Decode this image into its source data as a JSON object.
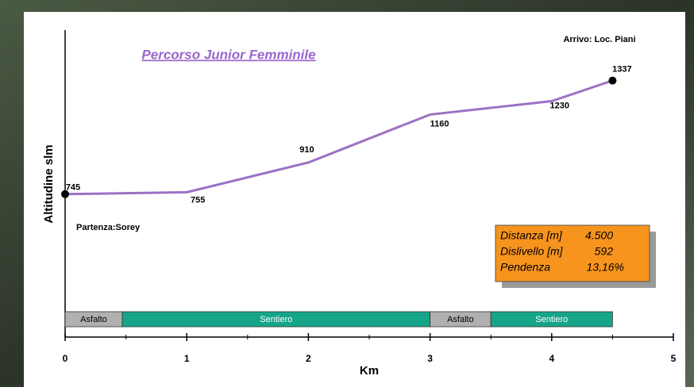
{
  "chart_data": {
    "type": "line",
    "title": "Percorso Junior Femminile",
    "x_label": "Km",
    "y_label": "Altitudine slm",
    "annotations": [
      "Arrivo: Loc. Piani",
      "Partenza:Sorey"
    ],
    "x": [
      0,
      1,
      2,
      3,
      4,
      4.5
    ],
    "series": [
      {
        "color": "#9b72c4",
        "values": [
          745,
          755,
          910,
          1160,
          1230,
          1337
        ]
      }
    ],
    "xlim": [
      0,
      5
    ],
    "xticks": [
      0,
      1,
      2,
      3,
      4,
      5
    ],
    "xminorticks": [
      0.5,
      1.5,
      2.5,
      3.5,
      4.5
    ],
    "ylim": [
      0,
      1600
    ],
    "surface": [
      {
        "label": "Asfalto",
        "start": 0,
        "end": 0.47,
        "color": "#b0b0b0"
      },
      {
        "label": "Sentiero",
        "start": 0.47,
        "end": 3,
        "color": "#17a58a"
      },
      {
        "label": "Asfalto",
        "start": 3,
        "end": 3.5,
        "color": "#b0b0b0"
      },
      {
        "label": "Sentiero",
        "start": 3.5,
        "end": 4.5,
        "color": "#17a58a"
      }
    ],
    "info_box": {
      "color": "#f7941d",
      "rows": [
        [
          "Distanza [m]",
          "4.500"
        ],
        [
          "Dislivello [m]",
          "592"
        ],
        [
          "Pendenza",
          "13,16%"
        ]
      ]
    }
  }
}
